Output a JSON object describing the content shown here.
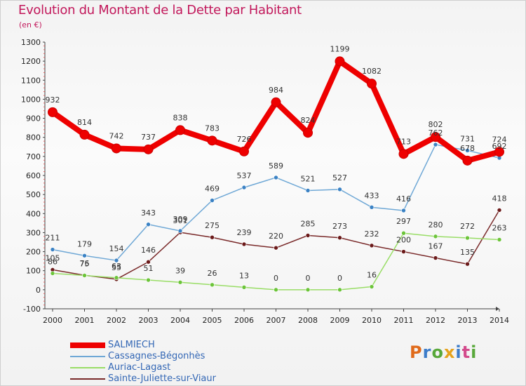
{
  "header": {
    "title": "Evolution du Montant de la Dette par Habitant",
    "subtitle": "(en €)"
  },
  "logo": {
    "text": "Proxiti",
    "colors": [
      "#e06a1a",
      "#3c7cc9",
      "#58a83a",
      "#e6a21c",
      "#3c7cc9",
      "#d34b8c",
      "#58a83a"
    ]
  },
  "chart_data": {
    "type": "line",
    "title": "Evolution du Montant de la Dette par Habitant",
    "subtitle": "(en €)",
    "xlabel": "",
    "ylabel": "",
    "x": [
      "2000",
      "2001",
      "2002",
      "2003",
      "2004",
      "2005",
      "2006",
      "2007",
      "2008",
      "2009",
      "2010",
      "2011",
      "2012",
      "2013",
      "2014"
    ],
    "ylim": [
      -100,
      1300
    ],
    "yticks": [
      "-100",
      "0",
      "100",
      "200",
      "300",
      "400",
      "500",
      "600",
      "700",
      "800",
      "900",
      "1000",
      "1100",
      "1200",
      "1300"
    ],
    "grid": false,
    "legend_position": "bottom-left",
    "series": [
      {
        "name": "SALMIECH",
        "color": "#ee0000",
        "emphasis": true,
        "values": [
          932,
          814,
          742,
          737,
          838,
          783,
          726,
          984,
          824,
          1199,
          1082,
          713,
          802,
          678,
          724
        ]
      },
      {
        "name": "Cassagnes-Bégonhès",
        "color": "#6fa8d6",
        "marker_color": "#3b82c4",
        "values": [
          211,
          179,
          154,
          343,
          309,
          469,
          537,
          589,
          521,
          527,
          433,
          416,
          762,
          731,
          692
        ]
      },
      {
        "name": "Auriac-Lagast",
        "color": "#99dd66",
        "marker_color": "#6cc43a",
        "values": [
          86,
          75,
          63,
          51,
          39,
          26,
          13,
          0,
          0,
          0,
          16,
          297,
          280,
          272,
          263
        ]
      },
      {
        "name": "Sainte-Juliette-sur-Viaur",
        "color": "#7a2a2a",
        "marker_color": "#6b1a1a",
        "values": [
          105,
          76,
          55,
          146,
          301,
          275,
          239,
          220,
          285,
          273,
          232,
          200,
          167,
          135,
          418
        ]
      }
    ]
  }
}
